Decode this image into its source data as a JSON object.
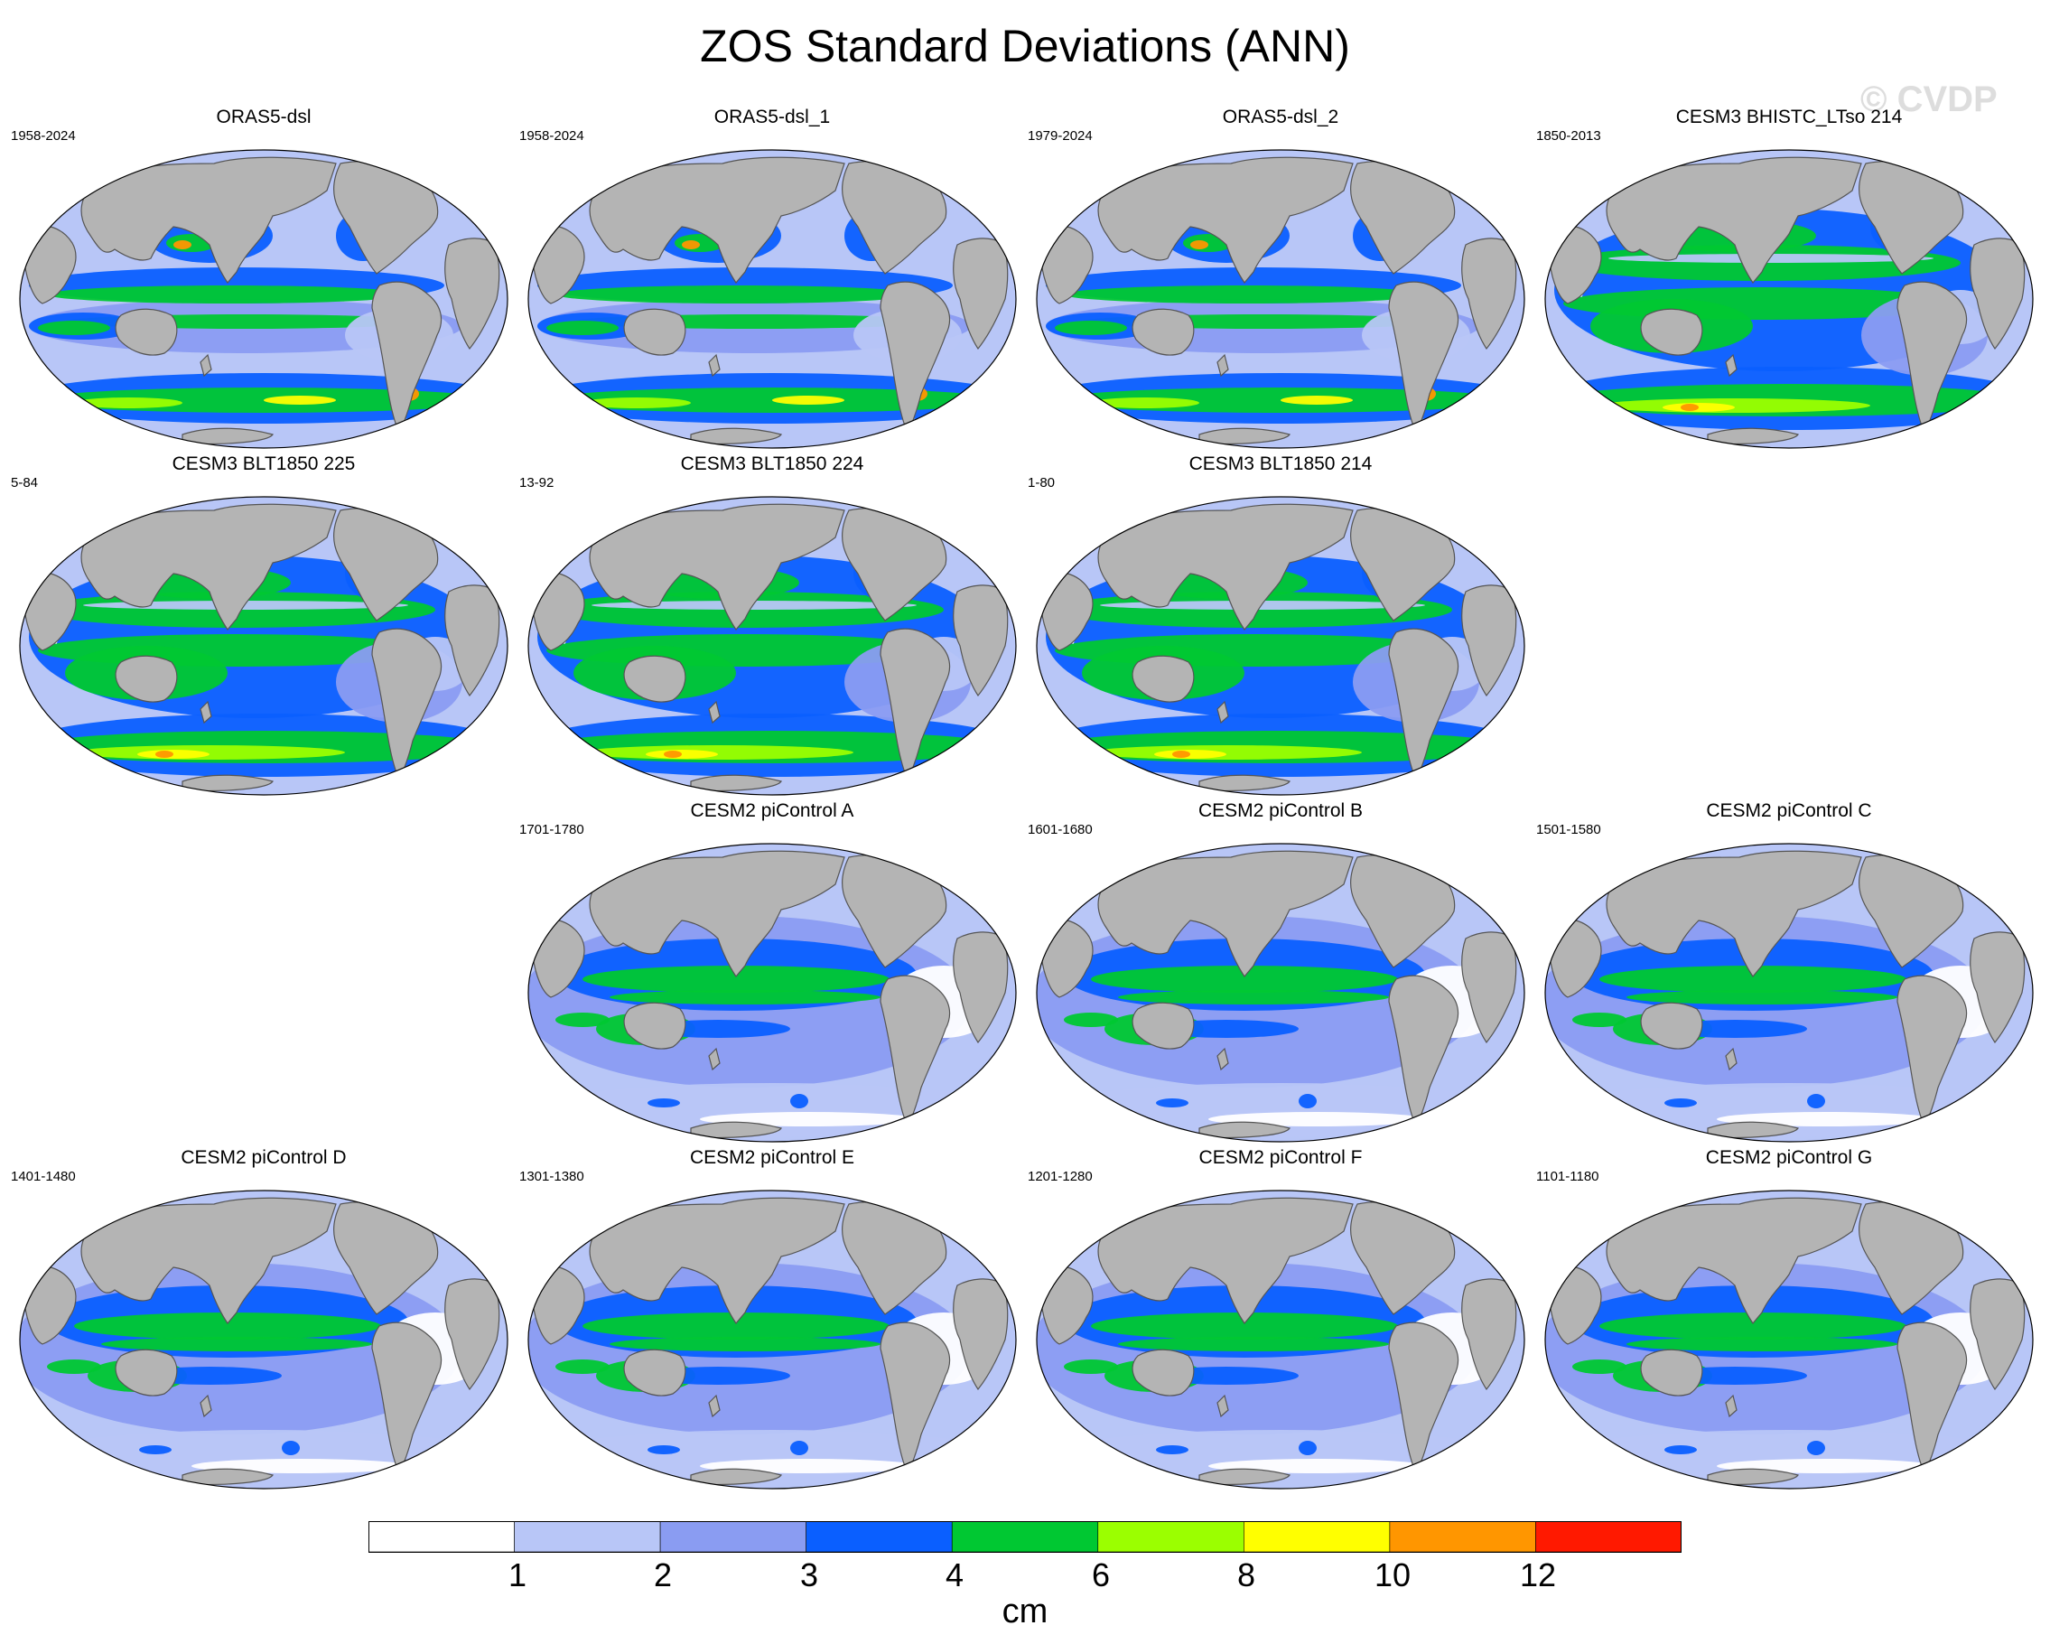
{
  "title": "ZOS Standard Deviations (ANN)",
  "watermark": "© CVDP",
  "colors": {
    "ocean_base": "#b8c6f7",
    "land": "#b4b4b4",
    "coast": "#555555",
    "levels": [
      "#ffffff",
      "#b8c6f7",
      "#8a9cf2",
      "#0a5fff",
      "#00c832",
      "#9bff00",
      "#ffff00",
      "#ff9600",
      "#ff1900"
    ]
  },
  "panels": [
    {
      "name": "ORAS5-dsl",
      "years": "1958-2024",
      "variant": "oras"
    },
    {
      "name": "ORAS5-dsl_1",
      "years": "1958-2024",
      "variant": "oras"
    },
    {
      "name": "ORAS5-dsl_2",
      "years": "1979-2024",
      "variant": "oras"
    },
    {
      "name": "CESM3 BHISTC_LTso 214",
      "years": "1850-2013",
      "variant": "cesm3"
    },
    {
      "name": "CESM3 BLT1850 225",
      "years": "5-84",
      "variant": "cesm3"
    },
    {
      "name": "CESM3 BLT1850 224",
      "years": "13-92",
      "variant": "cesm3"
    },
    {
      "name": "CESM3 BLT1850 214",
      "years": "1-80",
      "variant": "cesm3"
    },
    {
      "name": "CESM2 piControl A",
      "years": "1701-1780",
      "variant": "cesm2"
    },
    {
      "name": "CESM2 piControl B",
      "years": "1601-1680",
      "variant": "cesm2"
    },
    {
      "name": "CESM2 piControl C",
      "years": "1501-1580",
      "variant": "cesm2"
    },
    {
      "name": "CESM2 piControl D",
      "years": "1401-1480",
      "variant": "cesm2"
    },
    {
      "name": "CESM2 piControl E",
      "years": "1301-1380",
      "variant": "cesm2"
    },
    {
      "name": "CESM2 piControl F",
      "years": "1201-1280",
      "variant": "cesm2"
    },
    {
      "name": "CESM2 piControl G",
      "years": "1101-1180",
      "variant": "cesm2"
    }
  ],
  "colorbar": {
    "labels": [
      "1",
      "2",
      "3",
      "4",
      "6",
      "8",
      "10",
      "12"
    ],
    "units": "cm"
  }
}
